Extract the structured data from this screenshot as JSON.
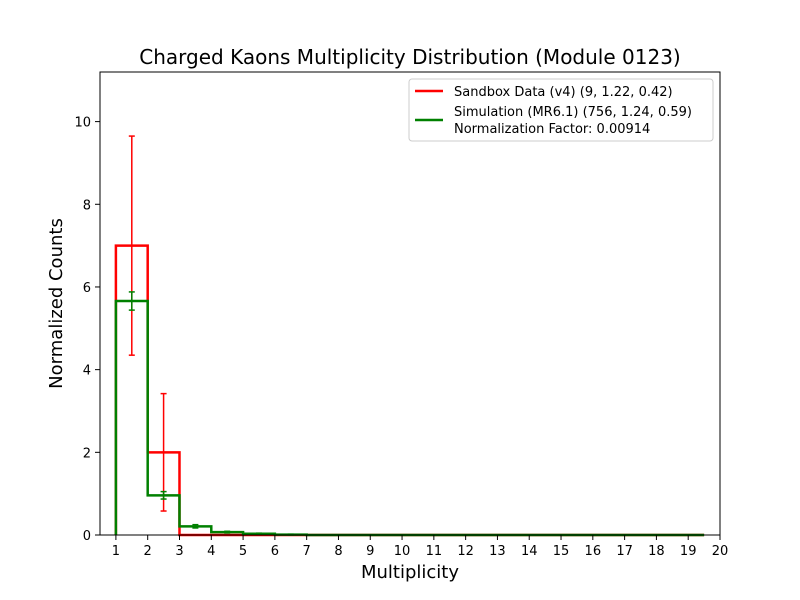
{
  "chart_data": {
    "type": "histogram-step",
    "title": "Charged Kaons Multiplicity Distribution (Module 0123)",
    "xlabel": "Multiplicity",
    "ylabel": "Normalized Counts",
    "xlim": [
      0.5,
      20
    ],
    "ylim": [
      0,
      11.2
    ],
    "xticks": [
      "1",
      "2",
      "3",
      "4",
      "5",
      "6",
      "7",
      "8",
      "9",
      "10",
      "11",
      "12",
      "13",
      "14",
      "15",
      "16",
      "17",
      "18",
      "19",
      "20"
    ],
    "yticks": [
      "0",
      "2",
      "4",
      "6",
      "8",
      "10"
    ],
    "legend_position": "top-right",
    "grid": false,
    "bin_edges": [
      1,
      2,
      3,
      4,
      5,
      6,
      7,
      8,
      9,
      10,
      11,
      12,
      13,
      14,
      15,
      16,
      17,
      18,
      19,
      19.5
    ],
    "series": [
      {
        "name": "Sandbox Data (v4) (9, 1.22, 0.42)",
        "color": "#ff0000",
        "values": [
          7.0,
          2.0,
          0,
          0,
          0,
          0,
          0,
          0,
          0,
          0,
          0,
          0,
          0,
          0,
          0,
          0,
          0,
          0,
          0
        ],
        "errors": [
          2.65,
          1.42,
          0,
          0,
          0,
          0,
          0,
          0,
          0,
          0,
          0,
          0,
          0,
          0,
          0,
          0,
          0,
          0,
          0
        ]
      },
      {
        "name": "Simulation (MR6.1) (756, 1.24, 0.59)",
        "extra_legend_line": "Normalization Factor: 0.00914",
        "color": "#008000",
        "values": [
          5.66,
          0.96,
          0.21,
          0.07,
          0.03,
          0.01,
          0,
          0,
          0,
          0,
          0,
          0,
          0,
          0,
          0,
          0,
          0,
          0,
          0
        ],
        "errors": [
          0.22,
          0.09,
          0.04,
          0.02,
          0.015,
          0.01,
          0,
          0,
          0,
          0,
          0,
          0,
          0,
          0,
          0,
          0,
          0,
          0,
          0
        ]
      }
    ]
  }
}
